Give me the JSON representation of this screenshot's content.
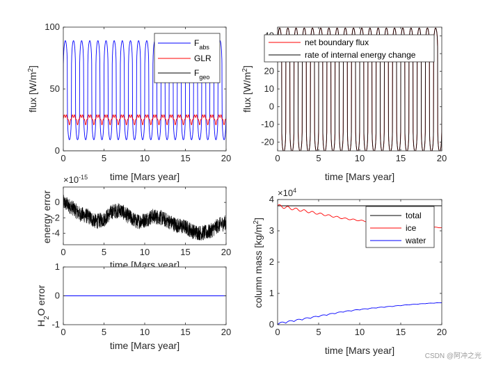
{
  "chart_data": [
    {
      "id": "p1",
      "type": "line",
      "xlabel": "time [Mars year]",
      "ylabel_main": "flux [W/m",
      "ylabel_sup": "2",
      "ylabel_end": "]",
      "xlim": [
        0,
        20
      ],
      "ylim": [
        0,
        100
      ],
      "xticks": [
        "0",
        "5",
        "10",
        "15",
        "20"
      ],
      "yticks": [
        "0",
        "50",
        "100"
      ],
      "legend_location": "top-right",
      "series": [
        {
          "name": "F",
          "sub": "abs",
          "color": "#0000ff",
          "mean": 49,
          "amp": 40,
          "period_years": 1,
          "note": "seasonal oscillation 9–89"
        },
        {
          "name": "GLR",
          "sub": "",
          "color": "#ff0000",
          "mean": 26,
          "amp": 5,
          "period_years": 1,
          "note": "oscillation ~21–31"
        },
        {
          "name": "F",
          "sub": "geo",
          "color": "#000000",
          "mean": 0.05,
          "amp": 0,
          "period_years": 1,
          "note": "near zero"
        }
      ]
    },
    {
      "id": "p2",
      "type": "line",
      "xlabel": "time [Mars year]",
      "ylabel_main": "flux [W/m",
      "ylabel_sup": "2",
      "ylabel_end": "]",
      "xlim": [
        0,
        20
      ],
      "ylim": [
        -25,
        45
      ],
      "xticks": [
        "0",
        "5",
        "10",
        "15",
        "20"
      ],
      "yticks": [
        "-20",
        "-10",
        "0",
        "10",
        "20",
        "30",
        "40"
      ],
      "legend_location": "top",
      "series": [
        {
          "name": "net boundary flux",
          "color": "#ff0000",
          "mean": 9.5,
          "amp": 35,
          "period_years": 1
        },
        {
          "name": "rate of internal energy change",
          "color": "#000000",
          "mean": 9.5,
          "amp": 35,
          "period_years": 1
        }
      ]
    },
    {
      "id": "p3",
      "type": "line",
      "xlabel": "time [Mars year]",
      "ylabel": "energy error",
      "exponent_base": "10",
      "exponent": "-15",
      "xlim": [
        0,
        20
      ],
      "ylim": [
        -5.5,
        2
      ],
      "xticks": [
        "0",
        "5",
        "10",
        "15",
        "20"
      ],
      "yticks": [
        "-4",
        "-2",
        "0"
      ],
      "series": [
        {
          "name": "energy error",
          "color": "#000000",
          "x": [
            0,
            1,
            2,
            3,
            4,
            5,
            6,
            7,
            8,
            9,
            10,
            11,
            12,
            13,
            14,
            15,
            16,
            17,
            18,
            19,
            20
          ],
          "y": [
            0,
            -0.6,
            -1.5,
            -1.8,
            -2.5,
            -2.2,
            -1.2,
            -1.0,
            -1.8,
            -2.5,
            -2.3,
            -1.8,
            -2.0,
            -2.5,
            -3.0,
            -3.2,
            -3.8,
            -4.0,
            -3.8,
            -3.0,
            -2.6
          ],
          "noise_amplitude": 1.0
        }
      ]
    },
    {
      "id": "p4",
      "type": "line",
      "xlabel": "time [Mars year]",
      "ylabel_pre": "H",
      "ylabel_sub": "2",
      "ylabel_post": "O error",
      "xlim": [
        0,
        20
      ],
      "ylim": [
        -1,
        1
      ],
      "xticks": [
        "0",
        "5",
        "10",
        "15",
        "20"
      ],
      "yticks": [
        "-1",
        "0",
        "1"
      ],
      "series": [
        {
          "name": "H2O error",
          "color": "#0000ff",
          "x": [
            0,
            20
          ],
          "y": [
            0,
            0
          ]
        }
      ]
    },
    {
      "id": "p5",
      "type": "line",
      "xlabel": "time [Mars year]",
      "ylabel_main": "column mass [kg/m",
      "ylabel_sup": "2",
      "ylabel_end": "]",
      "exponent_base": "10",
      "exponent": "4",
      "xlim": [
        0,
        20
      ],
      "ylim": [
        0,
        4
      ],
      "xticks": [
        "0",
        "5",
        "10",
        "15",
        "20"
      ],
      "yticks": [
        "0",
        "1",
        "2",
        "3",
        "4"
      ],
      "legend_location": "top-right",
      "series": [
        {
          "name": "total",
          "color": "#000000",
          "x": [
            0,
            20
          ],
          "y": [
            3.8,
            3.8
          ]
        },
        {
          "name": "ice",
          "color": "#ff0000",
          "x": [
            0,
            2,
            4,
            6,
            8,
            10,
            12,
            14,
            16,
            18,
            20
          ],
          "y": [
            3.8,
            3.7,
            3.6,
            3.5,
            3.4,
            3.33,
            3.27,
            3.22,
            3.17,
            3.13,
            3.1
          ]
        },
        {
          "name": "water",
          "color": "#0000ff",
          "x": [
            0,
            2,
            4,
            6,
            8,
            10,
            12,
            14,
            16,
            18,
            20
          ],
          "y": [
            0.0,
            0.1,
            0.2,
            0.3,
            0.4,
            0.47,
            0.53,
            0.58,
            0.63,
            0.67,
            0.7
          ]
        }
      ]
    }
  ],
  "watermark": "CSDN @阿冲之光"
}
